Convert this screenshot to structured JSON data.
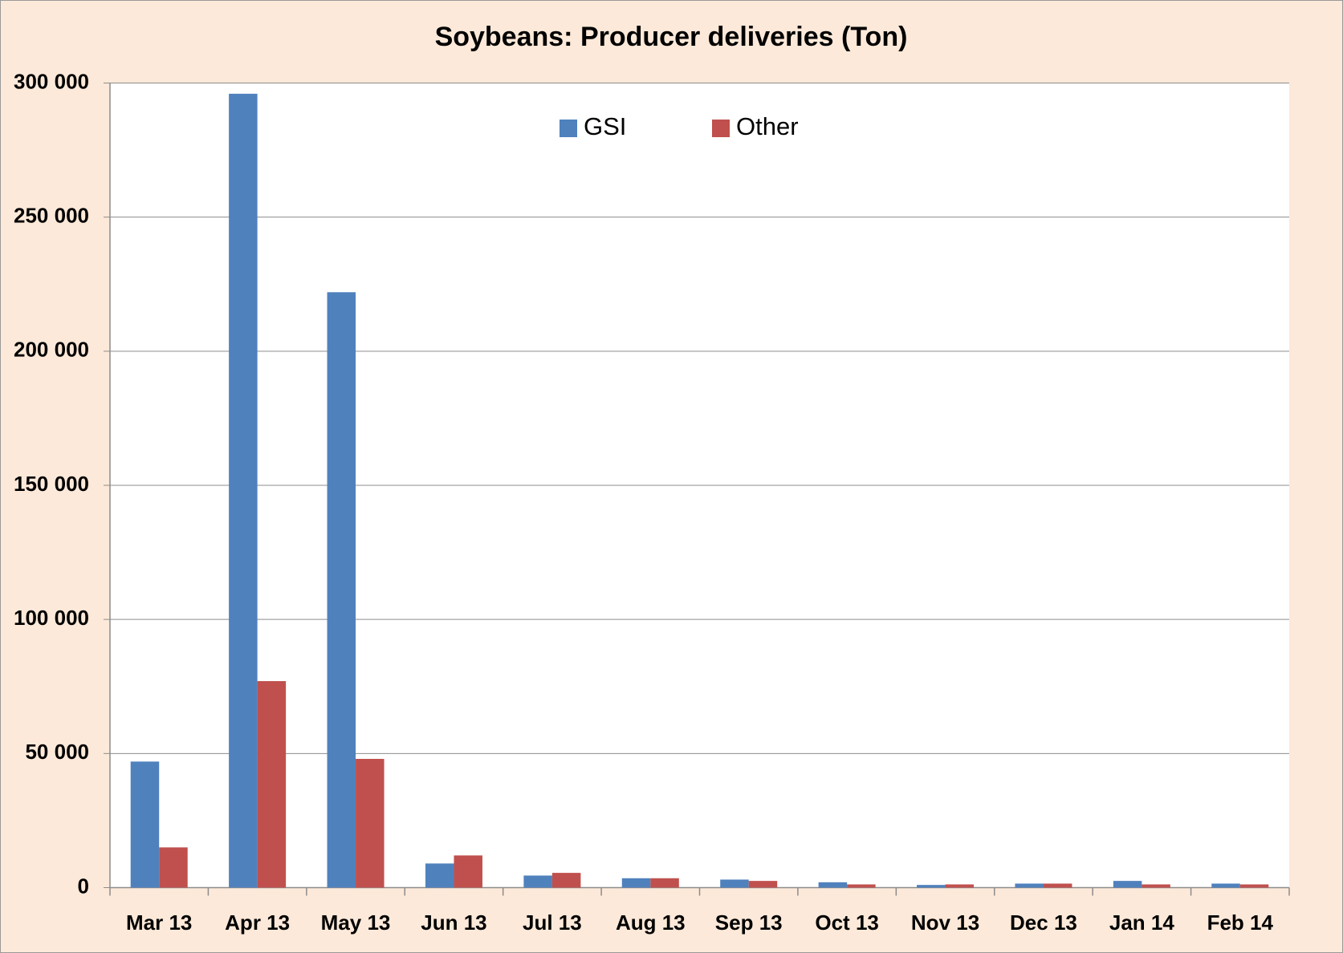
{
  "chart_data": {
    "type": "bar",
    "title": "Soybeans: Producer deliveries (Ton)",
    "categories": [
      "Mar 13",
      "Apr 13",
      "May 13",
      "Jun 13",
      "Jul 13",
      "Aug 13",
      "Sep 13",
      "Oct 13",
      "Nov 13",
      "Dec 13",
      "Jan 14",
      "Feb 14"
    ],
    "series": [
      {
        "name": "GSI",
        "color": "#4f81bd",
        "values": [
          47000,
          296000,
          222000,
          9000,
          4500,
          3500,
          3000,
          2000,
          1000,
          1500,
          2500,
          1500
        ]
      },
      {
        "name": "Other",
        "color": "#c0504d",
        "values": [
          15000,
          77000,
          48000,
          12000,
          5500,
          3500,
          2500,
          1200,
          1200,
          1500,
          1200,
          1200
        ]
      }
    ],
    "ylim": [
      0,
      300000
    ],
    "yticks": [
      0,
      {
        "value": 50000,
        "label": "50 000"
      },
      {
        "value": 100000,
        "label": "100 000"
      },
      {
        "value": 150000,
        "label": "150 000"
      },
      {
        "value": 200000,
        "label": "200 000"
      },
      {
        "value": 250000,
        "label": "250 000"
      },
      {
        "value": 300000,
        "label": "300 000"
      }
    ],
    "grid": true,
    "legend": "top"
  }
}
